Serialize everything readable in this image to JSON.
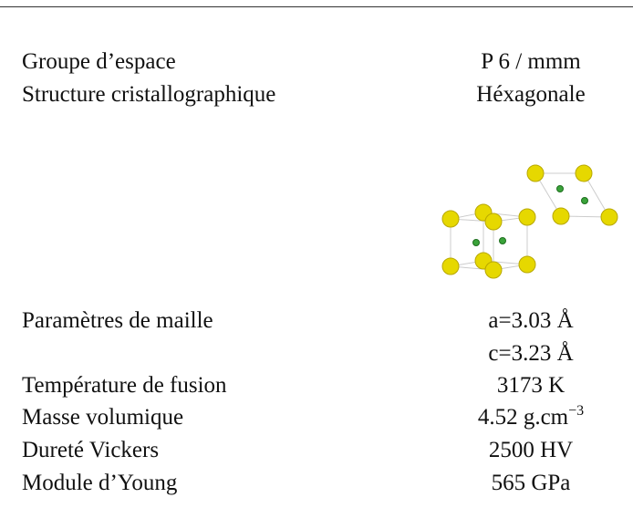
{
  "table": {
    "rows": [
      {
        "label": "Groupe d’espace",
        "values": [
          "P 6 / mmm"
        ]
      },
      {
        "label": "Structure cristallographique",
        "values": [
          "Héxagonale"
        ]
      },
      {
        "label": "Paramètres de maille",
        "values": [
          "a=3.03 Å",
          "c=3.23 Å"
        ]
      },
      {
        "label": "Température de fusion",
        "values": [
          "3173 K"
        ]
      },
      {
        "label": "Masse volumique",
        "values": [
          "4.52 g.cm"
        ],
        "superscript": "−3"
      },
      {
        "label": "Dureté Vickers",
        "values": [
          "2500 HV"
        ]
      },
      {
        "label": "Module d’Young",
        "values": [
          "565 GPa"
        ]
      }
    ]
  }
}
